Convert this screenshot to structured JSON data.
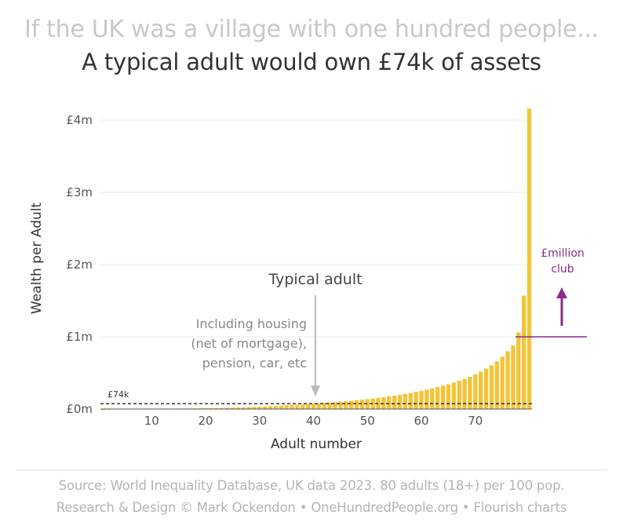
{
  "header": {
    "title": "If the UK was a village with one hundred people...",
    "subtitle": "A typical adult would own £74k of assets"
  },
  "annotations": {
    "typical": "Typical adult",
    "including_lines": [
      "Including housing",
      "(net of mortgage),",
      "pension, car, etc"
    ],
    "median_label": "£74k",
    "club_lines": [
      "£million",
      "club"
    ]
  },
  "footer": {
    "source": "Source: World Inequality Database, UK data 2023. 80 adults (18+) per 100 pop.",
    "credit": "Research & Design © Mark Ockendon • OneHundredPeople.org • Flourish charts"
  },
  "colors": {
    "bar": "#f3c43a",
    "purple": "#8a2c8a",
    "grid": "#e8e8e8",
    "arrow": "#bbbbbb"
  },
  "chart_data": {
    "type": "bar",
    "xlabel": "Adult number",
    "ylabel": "Wealth per Adult",
    "x_ticks": [
      10,
      20,
      30,
      40,
      50,
      60,
      70
    ],
    "y_ticks": [
      {
        "value": 0,
        "label": "£0m"
      },
      {
        "value": 1000000,
        "label": "£1m"
      },
      {
        "value": 2000000,
        "label": "£2m"
      },
      {
        "value": 3000000,
        "label": "£3m"
      },
      {
        "value": 4000000,
        "label": "£4m"
      }
    ],
    "ylim": [
      0,
      4000000
    ],
    "xlim": [
      1,
      80
    ],
    "median_value": 74000,
    "million_club_threshold": 1000000,
    "categories": [
      1,
      2,
      3,
      4,
      5,
      6,
      7,
      8,
      9,
      10,
      11,
      12,
      13,
      14,
      15,
      16,
      17,
      18,
      19,
      20,
      21,
      22,
      23,
      24,
      25,
      26,
      27,
      28,
      29,
      30,
      31,
      32,
      33,
      34,
      35,
      36,
      37,
      38,
      39,
      40,
      41,
      42,
      43,
      44,
      45,
      46,
      47,
      48,
      49,
      50,
      51,
      52,
      53,
      54,
      55,
      56,
      57,
      58,
      59,
      60,
      61,
      62,
      63,
      64,
      65,
      66,
      67,
      68,
      69,
      70,
      71,
      72,
      73,
      74,
      75,
      76,
      77,
      78,
      79,
      80
    ],
    "values": [
      -15000,
      -8000,
      -4000,
      -2000,
      -1000,
      0,
      500,
      1000,
      1500,
      2000,
      2500,
      3000,
      4000,
      5000,
      6000,
      7000,
      8000,
      9000,
      10000,
      11000,
      12000,
      13000,
      15000,
      17000,
      19000,
      21000,
      24000,
      27000,
      30000,
      33000,
      36000,
      40000,
      44000,
      48000,
      52000,
      56000,
      60000,
      64000,
      69000,
      74000,
      79000,
      84000,
      90000,
      96000,
      102000,
      108000,
      115000,
      122000,
      130000,
      138000,
      146000,
      155000,
      165000,
      175000,
      186000,
      198000,
      210000,
      223000,
      237000,
      252000,
      268000,
      285000,
      303000,
      322000,
      343000,
      366000,
      391000,
      418000,
      447000,
      480000,
      517000,
      558000,
      605000,
      660000,
      725000,
      800000,
      880000,
      1060000,
      1570000,
      4160000
    ]
  }
}
